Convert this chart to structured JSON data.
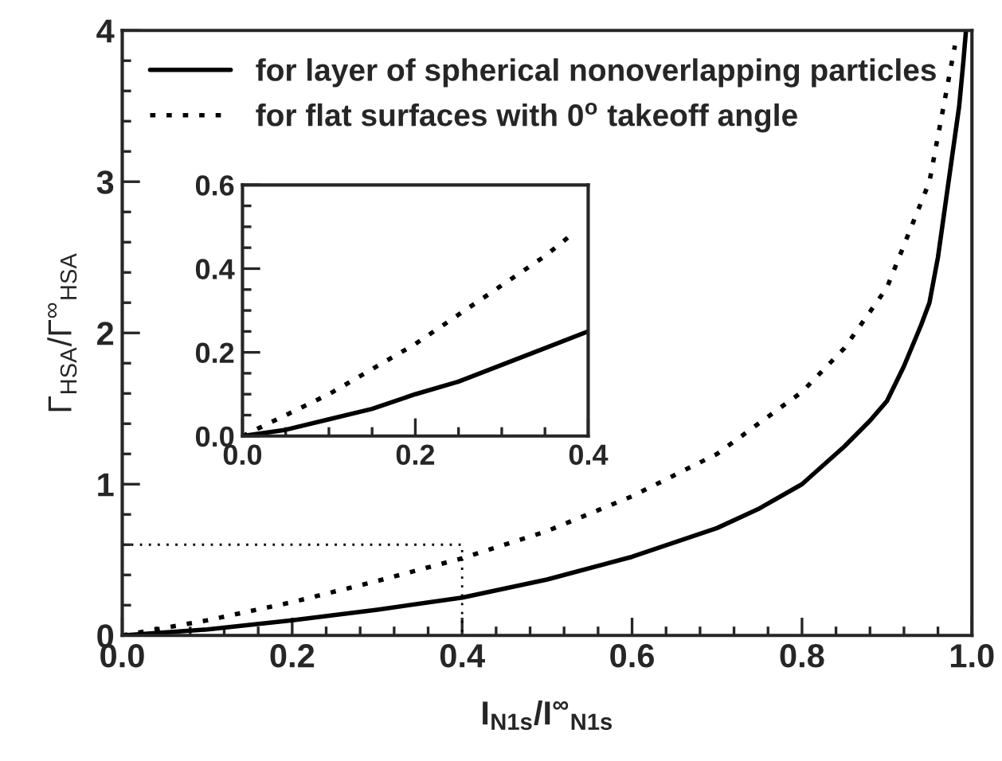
{
  "chart_data": [
    {
      "type": "line",
      "xlabel": "I$_{N1s}$/I$^{∞}$$_{N1s}$",
      "ylabel": "Γ$_{HSA}$/Γ$^{∞}$$_{HSA}$",
      "legend": "top left",
      "xlim": [
        0,
        1
      ],
      "ylim": [
        0,
        4
      ],
      "xticks": [
        {
          "value": 0,
          "label": "0.0"
        },
        {
          "value": 0.04,
          "label": null
        },
        {
          "value": 0.08,
          "label": null
        },
        {
          "value": 0.12,
          "label": null
        },
        {
          "value": 0.16,
          "label": null
        },
        {
          "value": 0.2,
          "label": "0.2"
        },
        {
          "value": 0.24,
          "label": null
        },
        {
          "value": 0.28,
          "label": null
        },
        {
          "value": 0.32,
          "label": null
        },
        {
          "value": 0.36,
          "label": null
        },
        {
          "value": 0.4,
          "label": "0.4"
        },
        {
          "value": 0.44,
          "label": null
        },
        {
          "value": 0.48,
          "label": null
        },
        {
          "value": 0.52,
          "label": null
        },
        {
          "value": 0.56,
          "label": null
        },
        {
          "value": 0.6,
          "label": "0.6"
        },
        {
          "value": 0.64,
          "label": null
        },
        {
          "value": 0.68,
          "label": null
        },
        {
          "value": 0.72,
          "label": null
        },
        {
          "value": 0.76,
          "label": null
        },
        {
          "value": 0.8,
          "label": "0.8"
        },
        {
          "value": 0.84,
          "label": null
        },
        {
          "value": 0.88,
          "label": null
        },
        {
          "value": 0.92,
          "label": null
        },
        {
          "value": 0.96,
          "label": null
        },
        {
          "value": 1,
          "label": "1.0"
        }
      ],
      "yticks": [
        0,
        {
          "value": 0.2,
          "label": null
        },
        {
          "value": 0.4,
          "label": null
        },
        {
          "value": 0.6,
          "label": null
        },
        {
          "value": 0.8,
          "label": null
        },
        1,
        {
          "value": 1.2,
          "label": null
        },
        {
          "value": 1.4,
          "label": null
        },
        {
          "value": 1.6,
          "label": null
        },
        {
          "value": 1.8,
          "label": null
        },
        2,
        {
          "value": 2.2,
          "label": null
        },
        {
          "value": 2.4,
          "label": null
        },
        {
          "value": 2.6,
          "label": null
        },
        {
          "value": 2.8,
          "label": null
        },
        3,
        {
          "value": 3.2,
          "label": null
        },
        {
          "value": 3.4,
          "label": null
        },
        {
          "value": 3.6,
          "label": null
        },
        {
          "value": 3.8,
          "label": null
        },
        4
      ],
      "series": [
        {
          "name": "for layer of spherical nonoverlapping particles",
          "color": "#000000",
          "line_style": "solid",
          "x": [
            0.0,
            0.1,
            0.2,
            0.3,
            0.4,
            0.5,
            0.6,
            0.7,
            0.75,
            0.8,
            0.85,
            0.88,
            0.9,
            0.92,
            0.94,
            0.95,
            0.96,
            0.97,
            0.98,
            0.985,
            0.99,
            0.993
          ],
          "values": [
            0.0,
            0.04,
            0.1,
            0.17,
            0.25,
            0.37,
            0.52,
            0.71,
            0.84,
            1.0,
            1.25,
            1.42,
            1.55,
            1.78,
            2.05,
            2.2,
            2.5,
            2.9,
            3.3,
            3.5,
            3.8,
            4.0
          ]
        },
        {
          "name": "for flat surfaces with 0$^{o}$ takeoff angle",
          "color": "#000000",
          "line_style": "dashed",
          "x": [
            0.0,
            0.1,
            0.2,
            0.3,
            0.4,
            0.5,
            0.6,
            0.7,
            0.8,
            0.85,
            0.9,
            0.95,
            0.98
          ],
          "values": [
            0.0,
            0.1,
            0.22,
            0.36,
            0.51,
            0.69,
            0.92,
            1.2,
            1.61,
            1.9,
            2.3,
            3.0,
            3.9
          ]
        },
        {
          "color": "#000000",
          "line_style": "dotted",
          "x": [
            0.0,
            0.4,
            0.4
          ],
          "values": [
            0.6,
            0.6,
            0.0
          ]
        }
      ]
    },
    {
      "type": "line",
      "legend": false,
      "xlim": [
        0,
        0.4
      ],
      "ylim": [
        0,
        0.6
      ],
      "xticks": [
        {
          "value": 0,
          "label": "0.0"
        },
        {
          "value": 0.05,
          "label": null
        },
        {
          "value": 0.1,
          "label": null
        },
        {
          "value": 0.15,
          "label": null
        },
        {
          "value": 0.2,
          "label": "0.2"
        },
        {
          "value": 0.25,
          "label": null
        },
        {
          "value": 0.3,
          "label": null
        },
        {
          "value": 0.35,
          "label": null
        },
        {
          "value": 0.4,
          "label": "0.4"
        }
      ],
      "yticks": [
        {
          "value": 0,
          "label": "0.0"
        },
        {
          "value": 0.05,
          "label": null
        },
        {
          "value": 0.1,
          "label": null
        },
        {
          "value": 0.15,
          "label": null
        },
        {
          "value": 0.2,
          "label": "0.2"
        },
        {
          "value": 0.25,
          "label": null
        },
        {
          "value": 0.3,
          "label": null
        },
        {
          "value": 0.35,
          "label": null
        },
        {
          "value": 0.4,
          "label": "0.4"
        },
        {
          "value": 0.45,
          "label": null
        },
        {
          "value": 0.5,
          "label": null
        },
        {
          "value": 0.55,
          "label": null
        },
        {
          "value": 0.6,
          "label": "0.6"
        }
      ],
      "series": [
        {
          "color": "#000000",
          "line_style": "solid",
          "x": [
            0.0,
            0.05,
            0.1,
            0.15,
            0.2,
            0.25,
            0.3,
            0.35,
            0.4
          ],
          "values": [
            0.0,
            0.015,
            0.04,
            0.065,
            0.1,
            0.13,
            0.17,
            0.21,
            0.25
          ]
        },
        {
          "color": "#000000",
          "line_style": "dashed",
          "x": [
            0.0,
            0.05,
            0.1,
            0.15,
            0.2,
            0.25,
            0.3,
            0.35,
            0.38
          ],
          "values": [
            0.0,
            0.05,
            0.1,
            0.16,
            0.22,
            0.29,
            0.36,
            0.43,
            0.48
          ]
        }
      ]
    }
  ]
}
